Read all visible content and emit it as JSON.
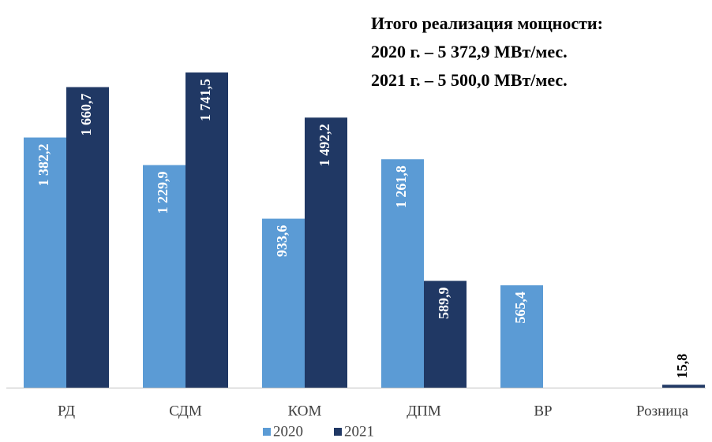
{
  "chart_data": {
    "type": "bar",
    "annotation": [
      "Итого реализация мощности:",
      "2020 г. – 5 372,9 МВт/мес.",
      "2021 г. – 5 500,0 МВт/мес."
    ],
    "categories": [
      "РД",
      "СДМ",
      "КОМ",
      "ДПМ",
      "ВР",
      "Розница"
    ],
    "series": [
      {
        "name": "2020",
        "color": "#5b9bd5",
        "values": [
          1382.2,
          1229.9,
          933.6,
          1261.8,
          565.4,
          null
        ],
        "value_labels": [
          "1 382,2",
          "1 229,9",
          "933,6",
          "1 261,8",
          "565,4",
          null
        ]
      },
      {
        "name": "2021",
        "color": "#203864",
        "values": [
          1660.7,
          1741.5,
          1492.2,
          589.9,
          null,
          15.8
        ],
        "value_labels": [
          "1 660,7",
          "1 741,5",
          "1 492,2",
          "589,9",
          null,
          "15,8"
        ]
      }
    ]
  }
}
